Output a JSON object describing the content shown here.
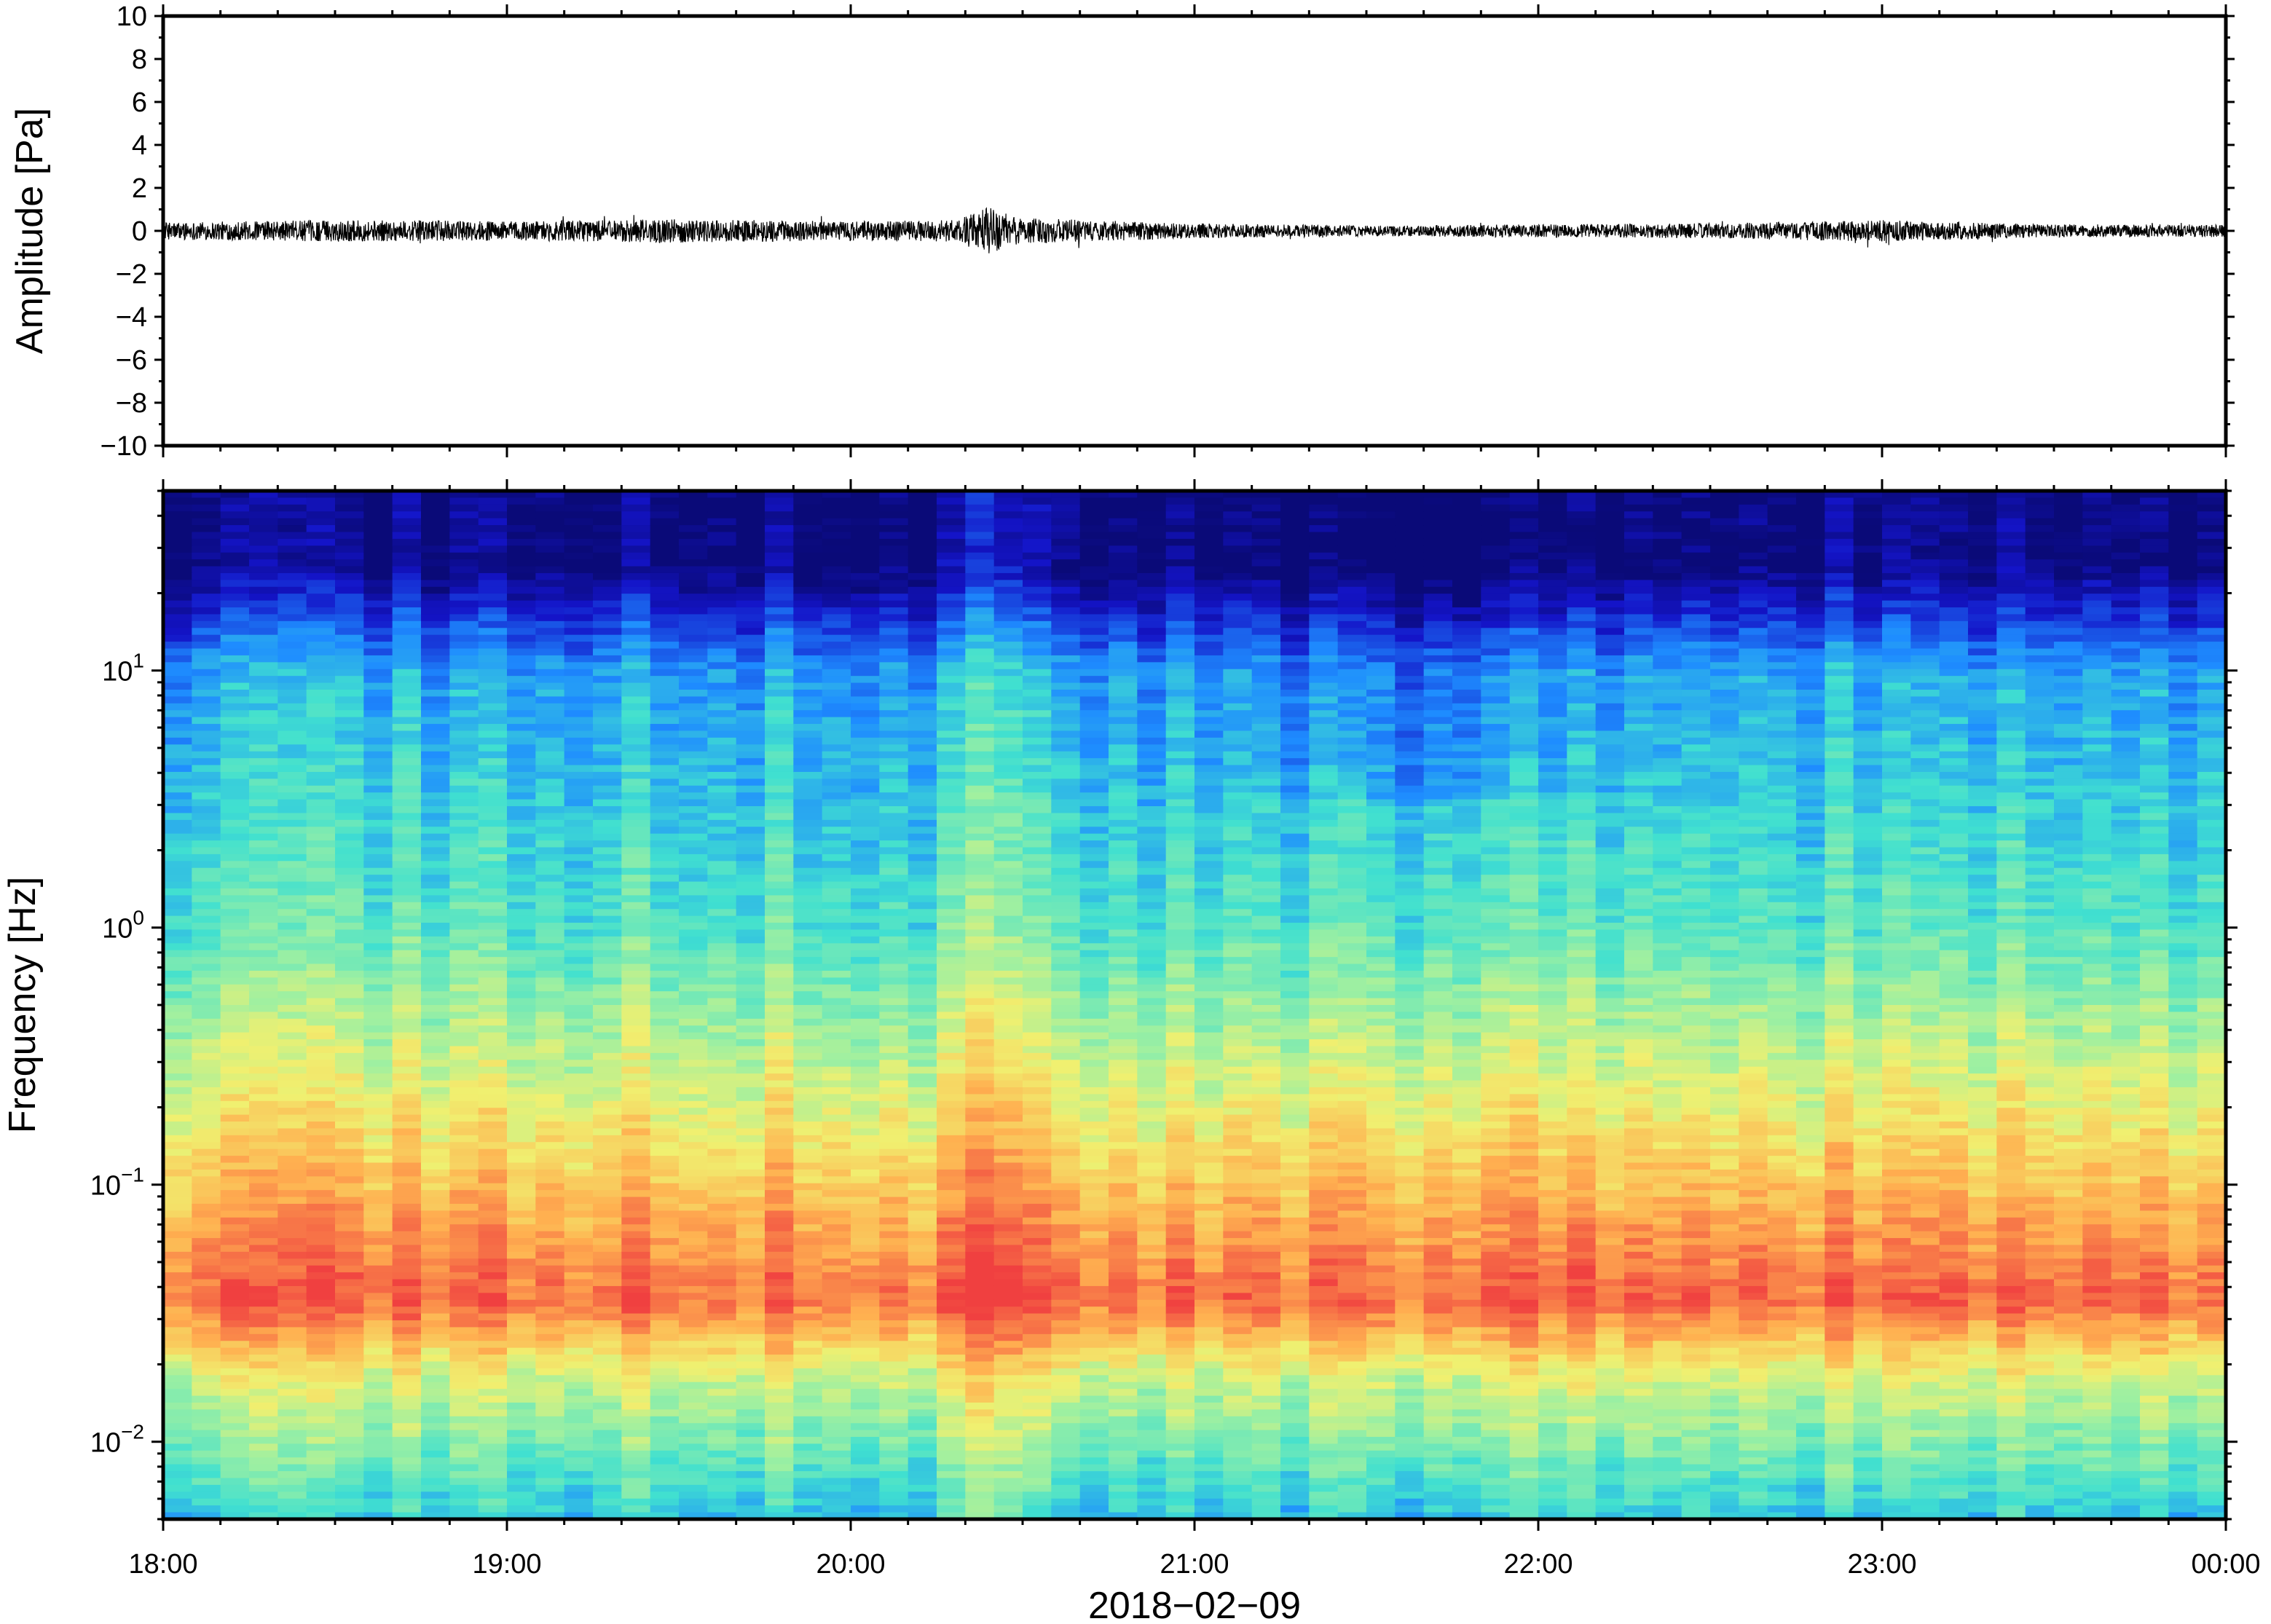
{
  "chart_data": [
    {
      "type": "line",
      "panel": "waveform",
      "ylabel": "Amplitude [Pa]",
      "ylim": [
        -10,
        10
      ],
      "yticks": [
        10,
        8,
        6,
        4,
        2,
        0,
        -2,
        -4,
        -6,
        -8,
        -10
      ],
      "ytick_labels": [
        "10",
        "8",
        "6",
        "4",
        "2",
        "0",
        "−2",
        "−4",
        "−6",
        "−8",
        "−10"
      ],
      "x_range_hours": [
        18,
        24
      ],
      "series": [
        {
          "envelope_time_hours": [
            18.0,
            18.5,
            19.0,
            19.5,
            20.0,
            20.3,
            20.4,
            20.5,
            21.0,
            21.5,
            22.0,
            22.5,
            23.0,
            23.5,
            24.0
          ],
          "envelope_amplitude_pa": [
            0.4,
            0.5,
            0.45,
            0.55,
            0.45,
            0.5,
            1.1,
            0.6,
            0.35,
            0.25,
            0.3,
            0.35,
            0.5,
            0.3,
            0.3
          ],
          "color": "#000000"
        }
      ]
    },
    {
      "type": "heatmap",
      "panel": "spectrogram",
      "ylabel": "Frequency [Hz]",
      "yscale": "log",
      "ylim": [
        0.005,
        50
      ],
      "ytick_labels": [
        {
          "value": 10,
          "base": "10",
          "exp": "1"
        },
        {
          "value": 1,
          "base": "10",
          "exp": "0"
        },
        {
          "value": 0.1,
          "base": "10",
          "exp": "−1"
        },
        {
          "value": 0.01,
          "base": "10",
          "exp": "−2"
        }
      ],
      "colormap": "jet",
      "colors": [
        "#0a0a7a",
        "#1010c8",
        "#1e90ff",
        "#40e0d0",
        "#a0f0a0",
        "#f0f070",
        "#ffb050",
        "#f04040"
      ],
      "description_bands_hz": {
        "low_power_top": [
          20,
          50
        ],
        "peak_power": [
          0.03,
          0.12
        ]
      }
    }
  ],
  "xaxis": {
    "xlabel": "2018−02−09",
    "ticks_hours": [
      18,
      19,
      20,
      21,
      22,
      23,
      24
    ],
    "tick_labels": [
      "18:00",
      "19:00",
      "20:00",
      "21:00",
      "22:00",
      "23:00",
      "00:00"
    ]
  }
}
